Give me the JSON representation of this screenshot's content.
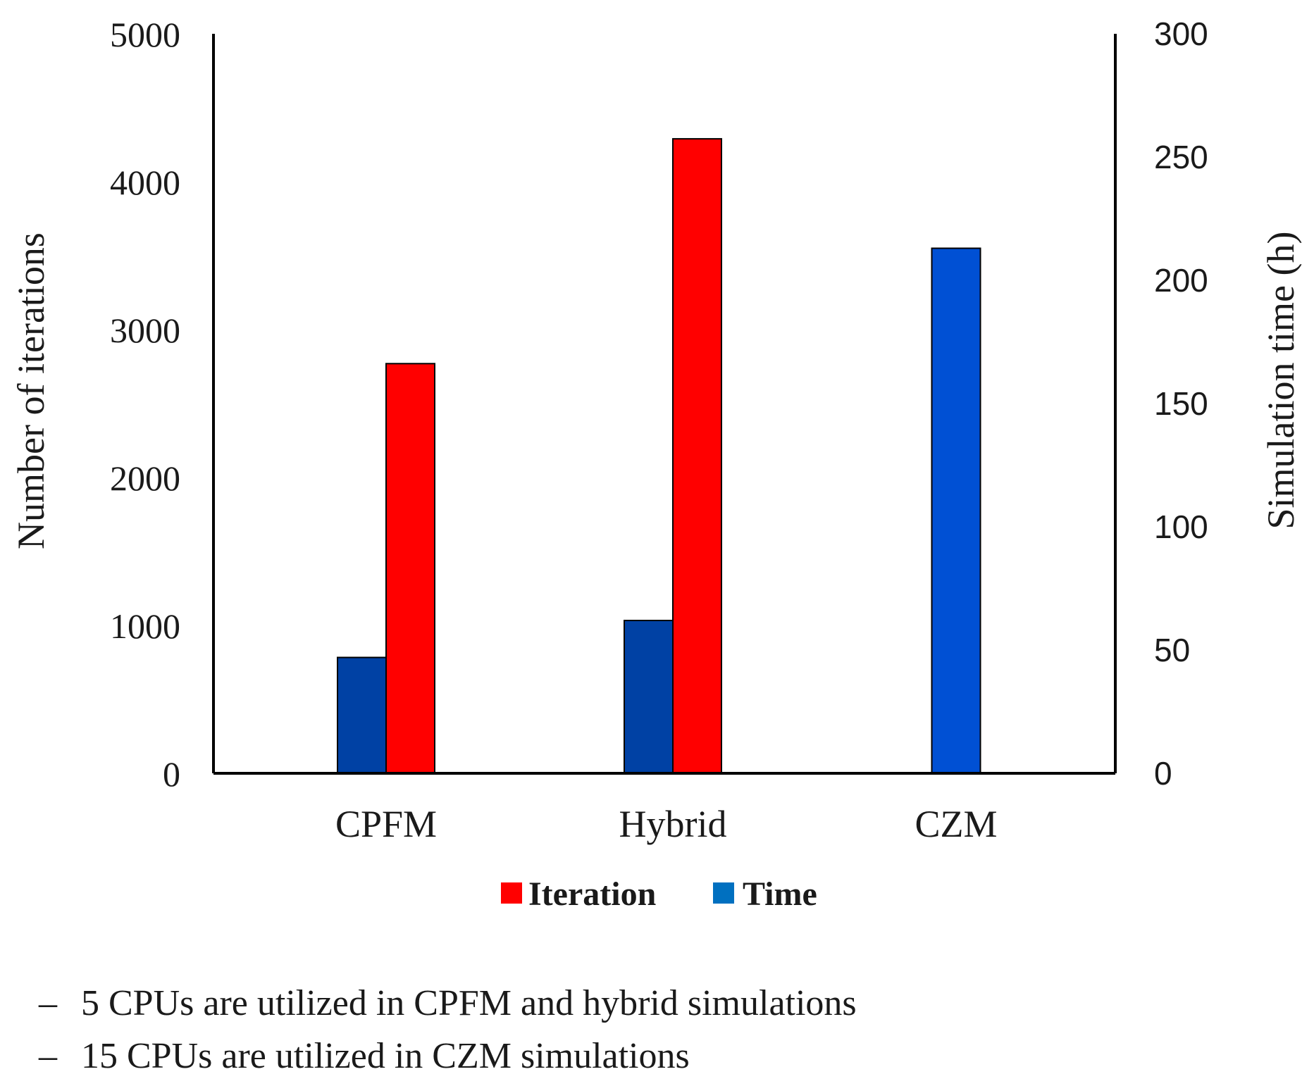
{
  "chart_data": {
    "type": "bar",
    "categories": [
      "CPFM",
      "Hybrid",
      "CZM"
    ],
    "series": [
      {
        "name": "Iteration",
        "axis": "left",
        "color": "#ff0000",
        "values": [
          2770,
          4290,
          null
        ]
      },
      {
        "name": "Time",
        "axis": "right",
        "color": "#0070c0",
        "values": [
          47,
          62,
          213
        ]
      }
    ],
    "time_bar_colors": [
      "#0041a4",
      "#0041a4",
      "#0050d4"
    ],
    "y_left": {
      "label": "Number of iterations",
      "range": [
        0,
        5000
      ],
      "ticks": [
        "0",
        "1000",
        "2000",
        "3000",
        "4000",
        "5000"
      ]
    },
    "y_right": {
      "label": "Simulation time (h)",
      "range": [
        0,
        300
      ],
      "ticks": [
        "0",
        "50",
        "100",
        "150",
        "200",
        "250",
        "300"
      ]
    },
    "legend": {
      "position": "bottom",
      "items": [
        "Iteration",
        "Time"
      ]
    },
    "grid": false
  },
  "notes": [
    "5 CPUs are utilized in CPFM and hybrid simulations",
    "15 CPUs are utilized in CZM simulations"
  ],
  "note_bullet": "–"
}
